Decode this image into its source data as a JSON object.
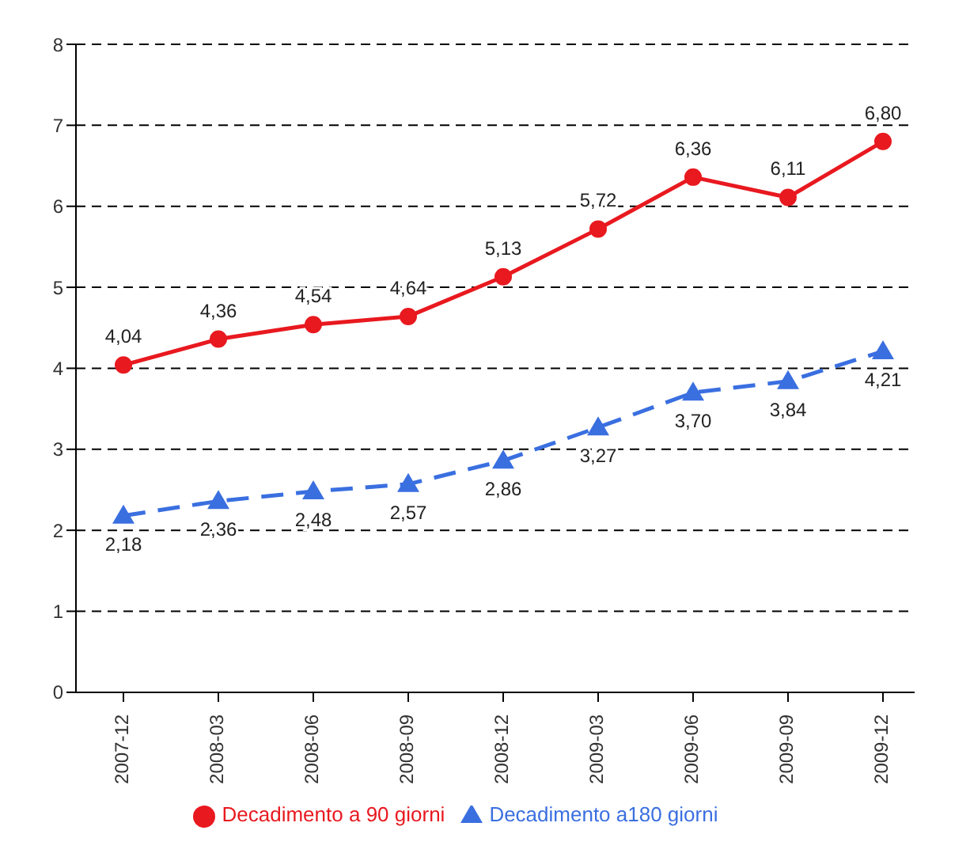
{
  "chart_data": {
    "type": "line",
    "categories": [
      "2007-12",
      "2008-03",
      "2008-06",
      "2008-09",
      "2008-12",
      "2009-03",
      "2009-06",
      "2009-09",
      "2009-12"
    ],
    "series": [
      {
        "name": "Decadimento a 90 giorni",
        "color": "#e8191f",
        "marker": "circle",
        "line_style": "solid",
        "values": [
          4.04,
          4.36,
          4.54,
          4.64,
          5.13,
          5.72,
          6.36,
          6.11,
          6.8
        ],
        "value_labels": [
          "4,04",
          "4,36",
          "4,54",
          "4,64",
          "5,13",
          "5,72",
          "6,36",
          "6,11",
          "6,80"
        ]
      },
      {
        "name": "Decadimento a180 giorni",
        "color": "#3a6fe0",
        "marker": "triangle",
        "line_style": "dashed",
        "values": [
          2.18,
          2.36,
          2.48,
          2.57,
          2.86,
          3.27,
          3.7,
          3.84,
          4.21
        ],
        "value_labels": [
          "2,18",
          "2,36",
          "2,48",
          "2,57",
          "2,86",
          "3,27",
          "3,70",
          "3,84",
          "4,21"
        ]
      }
    ],
    "ylim": [
      0,
      8
    ],
    "yticks": [
      0,
      1,
      2,
      3,
      4,
      5,
      6,
      7,
      8
    ],
    "grid": "y",
    "legend": "bottom"
  }
}
